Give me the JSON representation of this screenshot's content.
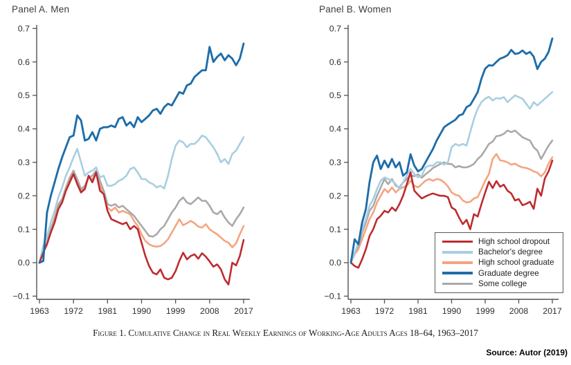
{
  "page": {
    "background": "#ffffff"
  },
  "panels": [
    {
      "title": "Panel A. Men"
    },
    {
      "title": "Panel B. Women"
    }
  ],
  "legend": {
    "items": [
      {
        "label": "High school dropout",
        "color": "#bd2b2e"
      },
      {
        "label": "Bachelor's degree",
        "color": "#a8cee1"
      },
      {
        "label": "High school graduate",
        "color": "#f5a47f"
      },
      {
        "label": "Graduate degree",
        "color": "#1e6da9"
      },
      {
        "label": "Some college",
        "color": "#a9a9a9"
      }
    ]
  },
  "caption": "Figure 1. Cumulative Change in Real Weekly Earnings of Working-Age Adults Ages 18–64, 1963–2017",
  "source": "Source: Autor (2019)",
  "chart_data": [
    {
      "type": "line",
      "title": "Panel A. Men",
      "x_start": 1963,
      "x_end": 2017,
      "x_ticks": [
        1963,
        1972,
        1981,
        1990,
        1999,
        2008,
        2017
      ],
      "y_ticks": [
        -0.1,
        0.0,
        0.1,
        0.2,
        0.3,
        0.4,
        0.5,
        0.6,
        0.7
      ],
      "ylim": [
        -0.11,
        0.72
      ],
      "xlabel": "",
      "ylabel": "",
      "grid": false,
      "series": [
        {
          "name": "High school graduate",
          "color": "#f5a47f",
          "values": [
            0.0,
            0.035,
            0.06,
            0.1,
            0.135,
            0.175,
            0.19,
            0.225,
            0.255,
            0.275,
            0.245,
            0.215,
            0.225,
            0.255,
            0.25,
            0.265,
            0.23,
            0.205,
            0.165,
            0.155,
            0.165,
            0.15,
            0.155,
            0.15,
            0.145,
            0.125,
            0.11,
            0.085,
            0.065,
            0.055,
            0.05,
            0.048,
            0.05,
            0.058,
            0.07,
            0.09,
            0.11,
            0.13,
            0.112,
            0.118,
            0.125,
            0.118,
            0.108,
            0.105,
            0.115,
            0.1,
            0.092,
            0.085,
            0.075,
            0.065,
            0.06,
            0.046,
            0.058,
            0.085,
            0.11
          ]
        },
        {
          "name": "Some college",
          "color": "#a9a9a9",
          "values": [
            0.0,
            0.035,
            0.06,
            0.1,
            0.13,
            0.17,
            0.19,
            0.22,
            0.25,
            0.275,
            0.25,
            0.22,
            0.23,
            0.255,
            0.26,
            0.275,
            0.245,
            0.215,
            0.175,
            0.17,
            0.175,
            0.165,
            0.17,
            0.16,
            0.15,
            0.14,
            0.125,
            0.11,
            0.095,
            0.08,
            0.078,
            0.085,
            0.1,
            0.11,
            0.13,
            0.15,
            0.165,
            0.185,
            0.195,
            0.18,
            0.175,
            0.185,
            0.195,
            0.185,
            0.185,
            0.17,
            0.15,
            0.145,
            0.155,
            0.135,
            0.12,
            0.11,
            0.13,
            0.145,
            0.165
          ]
        },
        {
          "name": "Bachelor's degree",
          "color": "#a8cee1",
          "values": [
            0.0,
            0.05,
            0.08,
            0.12,
            0.155,
            0.195,
            0.225,
            0.26,
            0.285,
            0.315,
            0.34,
            0.3,
            0.26,
            0.27,
            0.275,
            0.285,
            0.255,
            0.26,
            0.23,
            0.23,
            0.235,
            0.245,
            0.25,
            0.26,
            0.28,
            0.285,
            0.27,
            0.25,
            0.25,
            0.24,
            0.235,
            0.225,
            0.23,
            0.222,
            0.26,
            0.31,
            0.35,
            0.365,
            0.36,
            0.345,
            0.355,
            0.355,
            0.365,
            0.38,
            0.375,
            0.36,
            0.345,
            0.325,
            0.3,
            0.31,
            0.295,
            0.325,
            0.335,
            0.355,
            0.375
          ]
        },
        {
          "name": "High school dropout",
          "color": "#bd2b2e",
          "values": [
            0.0,
            0.03,
            0.055,
            0.09,
            0.12,
            0.16,
            0.18,
            0.215,
            0.24,
            0.265,
            0.235,
            0.21,
            0.22,
            0.26,
            0.24,
            0.27,
            0.215,
            0.205,
            0.155,
            0.13,
            0.125,
            0.12,
            0.115,
            0.12,
            0.1,
            0.11,
            0.1,
            0.06,
            0.02,
            -0.01,
            -0.03,
            -0.035,
            -0.02,
            -0.045,
            -0.05,
            -0.045,
            -0.025,
            0.005,
            0.03,
            0.01,
            0.02,
            0.025,
            0.012,
            0.028,
            0.018,
            0.004,
            -0.012,
            -0.005,
            -0.02,
            -0.05,
            -0.065,
            0.0,
            -0.008,
            0.02,
            0.068
          ]
        },
        {
          "name": "Graduate degree",
          "color": "#1e6da9",
          "values": [
            0.0,
            0.005,
            0.15,
            0.2,
            0.24,
            0.28,
            0.315,
            0.345,
            0.375,
            0.38,
            0.44,
            0.425,
            0.365,
            0.37,
            0.39,
            0.365,
            0.4,
            0.405,
            0.405,
            0.41,
            0.405,
            0.43,
            0.435,
            0.41,
            0.42,
            0.405,
            0.435,
            0.42,
            0.43,
            0.44,
            0.455,
            0.46,
            0.445,
            0.465,
            0.475,
            0.47,
            0.49,
            0.51,
            0.505,
            0.53,
            0.535,
            0.555,
            0.565,
            0.575,
            0.575,
            0.645,
            0.6,
            0.615,
            0.625,
            0.605,
            0.62,
            0.61,
            0.59,
            0.61,
            0.655
          ]
        }
      ]
    },
    {
      "type": "line",
      "title": "Panel B. Women",
      "x_start": 1963,
      "x_end": 2017,
      "x_ticks": [
        1963,
        1972,
        1981,
        1990,
        1999,
        2008,
        2017
      ],
      "y_ticks": [
        -0.1,
        0.0,
        0.1,
        0.2,
        0.3,
        0.4,
        0.5,
        0.6,
        0.7
      ],
      "ylim": [
        -0.11,
        0.72
      ],
      "xlabel": "",
      "ylabel": "",
      "grid": false,
      "series": [
        {
          "name": "High school graduate",
          "color": "#f5a47f",
          "values": [
            0.0,
            0.025,
            0.04,
            0.07,
            0.1,
            0.13,
            0.15,
            0.18,
            0.2,
            0.22,
            0.21,
            0.225,
            0.21,
            0.22,
            0.225,
            0.23,
            0.245,
            0.23,
            0.225,
            0.235,
            0.245,
            0.25,
            0.245,
            0.25,
            0.248,
            0.24,
            0.228,
            0.21,
            0.203,
            0.2,
            0.186,
            0.18,
            0.182,
            0.192,
            0.196,
            0.22,
            0.245,
            0.265,
            0.31,
            0.325,
            0.306,
            0.304,
            0.3,
            0.293,
            0.296,
            0.289,
            0.285,
            0.283,
            0.279,
            0.273,
            0.269,
            0.258,
            0.27,
            0.296,
            0.315
          ]
        },
        {
          "name": "Some college",
          "color": "#a9a9a9",
          "values": [
            0.0,
            0.03,
            0.05,
            0.09,
            0.12,
            0.155,
            0.17,
            0.2,
            0.225,
            0.25,
            0.235,
            0.25,
            0.23,
            0.225,
            0.24,
            0.25,
            0.262,
            0.258,
            0.264,
            0.254,
            0.264,
            0.273,
            0.283,
            0.289,
            0.295,
            0.3,
            0.295,
            0.295,
            0.285,
            0.289,
            0.285,
            0.285,
            0.289,
            0.295,
            0.31,
            0.32,
            0.337,
            0.355,
            0.362,
            0.378,
            0.38,
            0.385,
            0.395,
            0.39,
            0.395,
            0.385,
            0.375,
            0.37,
            0.365,
            0.345,
            0.335,
            0.31,
            0.33,
            0.35,
            0.365
          ]
        },
        {
          "name": "Bachelor's degree",
          "color": "#a8cee1",
          "values": [
            0.0,
            0.03,
            0.06,
            0.1,
            0.13,
            0.17,
            0.19,
            0.22,
            0.245,
            0.255,
            0.25,
            0.245,
            0.235,
            0.22,
            0.24,
            0.26,
            0.28,
            0.265,
            0.255,
            0.26,
            0.285,
            0.29,
            0.29,
            0.3,
            0.3,
            0.293,
            0.3,
            0.345,
            0.355,
            0.35,
            0.355,
            0.35,
            0.39,
            0.43,
            0.46,
            0.48,
            0.49,
            0.496,
            0.485,
            0.492,
            0.49,
            0.495,
            0.48,
            0.49,
            0.5,
            0.495,
            0.49,
            0.475,
            0.46,
            0.48,
            0.47,
            0.48,
            0.49,
            0.5,
            0.51
          ]
        },
        {
          "name": "High school dropout",
          "color": "#bd2b2e",
          "values": [
            0.0,
            -0.01,
            -0.015,
            0.01,
            0.04,
            0.08,
            0.1,
            0.13,
            0.14,
            0.155,
            0.15,
            0.165,
            0.155,
            0.175,
            0.2,
            0.235,
            0.27,
            0.215,
            0.203,
            0.192,
            0.198,
            0.203,
            0.207,
            0.203,
            0.2,
            0.2,
            0.196,
            0.165,
            0.158,
            0.135,
            0.115,
            0.128,
            0.1,
            0.145,
            0.138,
            0.175,
            0.21,
            0.242,
            0.223,
            0.244,
            0.227,
            0.233,
            0.215,
            0.207,
            0.186,
            0.19,
            0.172,
            0.176,
            0.182,
            0.161,
            0.221,
            0.2,
            0.252,
            0.273,
            0.305
          ]
        },
        {
          "name": "Graduate degree",
          "color": "#1e6da9",
          "values": [
            0.0,
            0.07,
            0.055,
            0.12,
            0.16,
            0.24,
            0.3,
            0.32,
            0.28,
            0.305,
            0.285,
            0.31,
            0.285,
            0.3,
            0.26,
            0.27,
            0.324,
            0.29,
            0.273,
            0.28,
            0.3,
            0.32,
            0.34,
            0.365,
            0.385,
            0.405,
            0.413,
            0.42,
            0.427,
            0.44,
            0.444,
            0.465,
            0.471,
            0.49,
            0.51,
            0.55,
            0.58,
            0.59,
            0.589,
            0.6,
            0.61,
            0.614,
            0.62,
            0.636,
            0.624,
            0.626,
            0.634,
            0.624,
            0.63,
            0.616,
            0.579,
            0.6,
            0.61,
            0.63,
            0.67
          ]
        }
      ]
    }
  ]
}
